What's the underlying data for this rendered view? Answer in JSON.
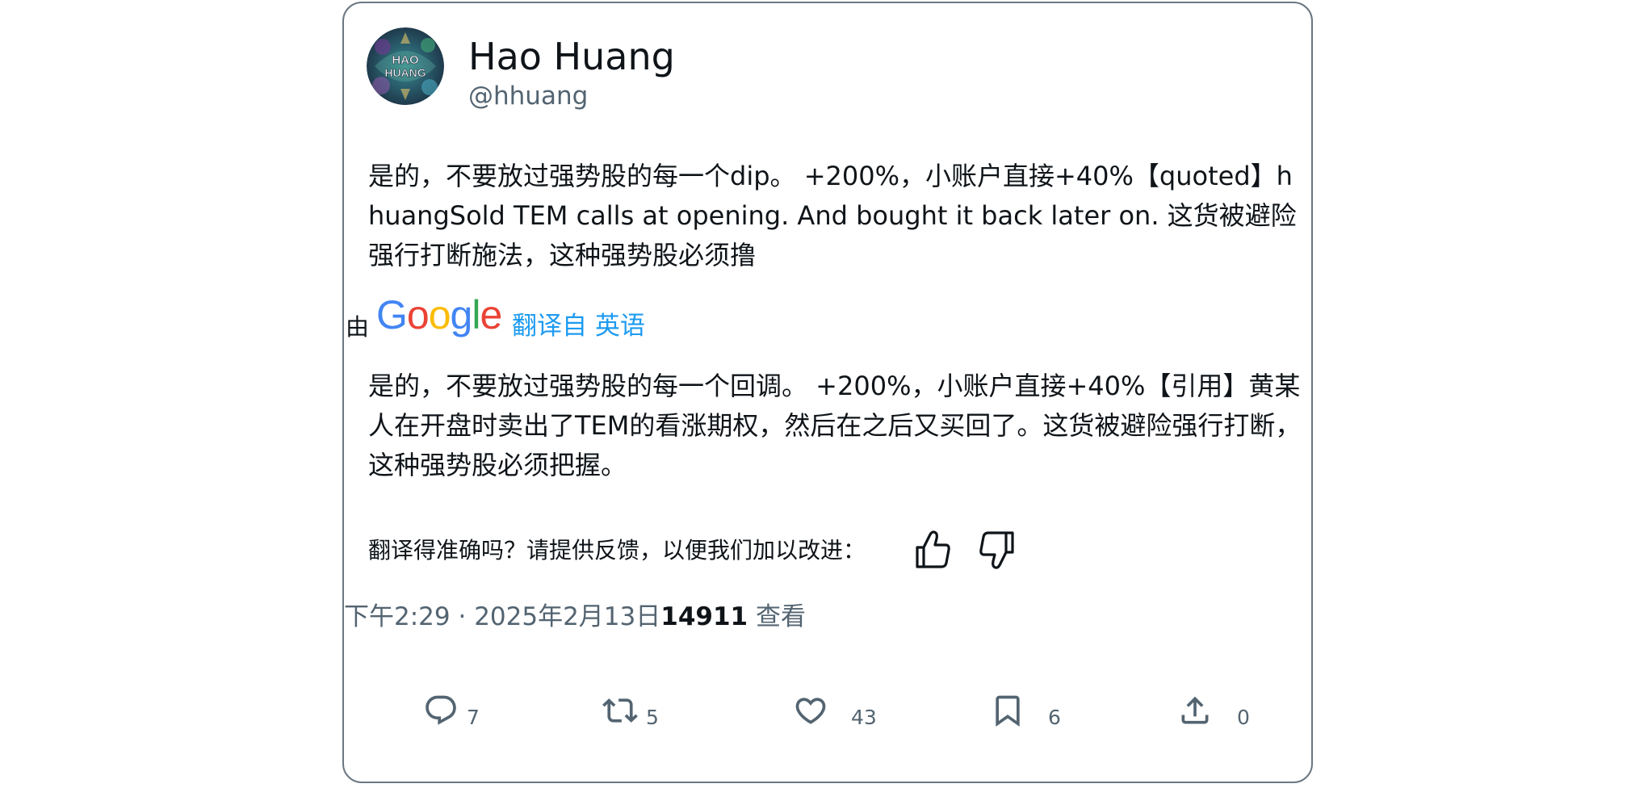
{
  "tweet": {
    "author": {
      "display_name": "Hao Huang",
      "handle": "@hhuang",
      "avatar_text": "HAO HUANG"
    },
    "text": "是的，不要放过强势股的每一个dip。 +200%，小账户直接+40%【quoted】hhuangSold TEM calls at opening. And bought it back later on. 这货被避险强行打断施法，这种强势股必须撸",
    "translation": {
      "by_label": "由",
      "provider": "Google",
      "link_text": "翻译自 英语",
      "text": "是的，不要放过强势股的每一个回调。 +200%，小账户直接+40%【引用】黄某人在开盘时卖出了TEM的看涨期权，然后在之后又买回了。这货被避险强行打断，这种强势股必须把握。",
      "feedback_prompt": "翻译得准确吗？请提供反馈，以便我们加以改进："
    },
    "meta": {
      "time": "下午2:29",
      "separator": " · ",
      "date": "2025年2月13日",
      "views_count": "14911",
      "views_label": " 查看"
    },
    "actions": {
      "replies": "7",
      "retweets": "5",
      "likes": "43",
      "bookmarks": "6",
      "shares": "0"
    }
  },
  "colors": {
    "border": "#6b7783",
    "text": "#0f1419",
    "secondary": "#536471",
    "link": "#1d9bf0"
  },
  "icons": [
    "reply-icon",
    "retweet-icon",
    "like-icon",
    "bookmark-icon",
    "share-icon",
    "thumbs-up-icon",
    "thumbs-down-icon"
  ]
}
